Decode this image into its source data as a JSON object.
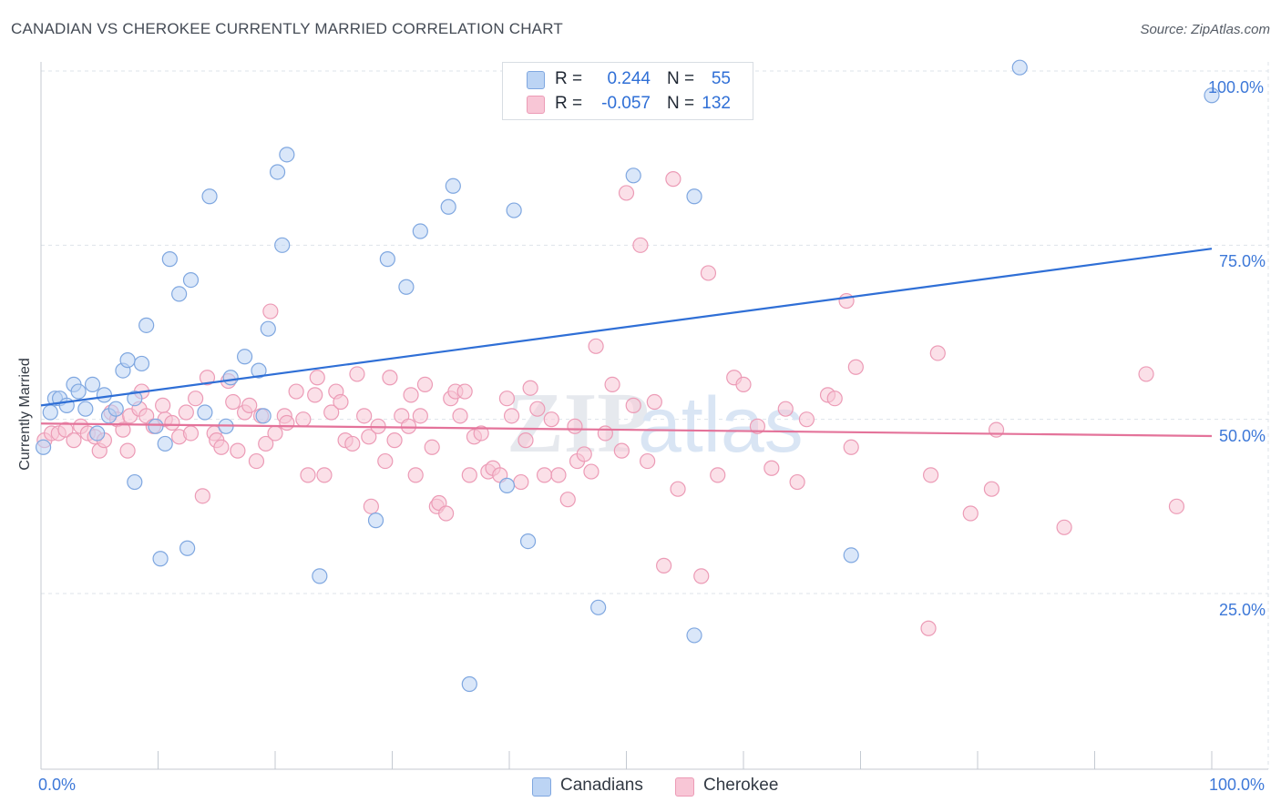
{
  "header": {
    "title": "CANADIAN VS CHEROKEE CURRENTLY MARRIED CORRELATION CHART",
    "source": "Source: ZipAtlas.com"
  },
  "legend": {
    "series": [
      {
        "r_label": "R =",
        "r_value": "0.244",
        "n_label": "N =",
        "n_value": "55"
      },
      {
        "r_label": "R =",
        "r_value": "-0.057",
        "n_label": "N =",
        "n_value": "132"
      }
    ]
  },
  "watermark": {
    "zip": "ZIP",
    "atlas": "atlas"
  },
  "colors": {
    "canadians_fill": "#bcd4f4",
    "canadians_stroke": "#7fa7e0",
    "canadians_line": "#2f6fd6",
    "cherokee_fill": "#f8c6d6",
    "cherokee_stroke": "#ec9bb6",
    "cherokee_line": "#e4739a",
    "grid": "#dde3ea",
    "axis_text": "#3d78d8"
  },
  "chart_data": {
    "type": "scatter",
    "title": "CANADIAN VS CHEROKEE CURRENTLY MARRIED CORRELATION CHART",
    "xlabel": "",
    "ylabel": "Currently Married",
    "xlim": [
      0,
      100
    ],
    "ylim": [
      0,
      103
    ],
    "x_tick_labels": [
      "0.0%",
      "100.0%"
    ],
    "y_ticks": [
      25,
      50,
      75,
      100
    ],
    "y_tick_labels": [
      "25.0%",
      "50.0%",
      "75.0%",
      "100.0%"
    ],
    "grid": true,
    "legend_position": "top-center",
    "series": [
      {
        "name": "Canadians",
        "r": 0.244,
        "n": 55,
        "trend": {
          "x": [
            0,
            100
          ],
          "y": [
            52.0,
            74.5
          ]
        },
        "points": [
          {
            "x": 0.2,
            "y": 46
          },
          {
            "x": 0.8,
            "y": 51
          },
          {
            "x": 1.2,
            "y": 53
          },
          {
            "x": 1.6,
            "y": 53
          },
          {
            "x": 2.2,
            "y": 52
          },
          {
            "x": 2.8,
            "y": 55
          },
          {
            "x": 3.2,
            "y": 54
          },
          {
            "x": 3.8,
            "y": 51.5
          },
          {
            "x": 4.4,
            "y": 55
          },
          {
            "x": 4.8,
            "y": 48
          },
          {
            "x": 5.4,
            "y": 53.5
          },
          {
            "x": 5.8,
            "y": 50.5
          },
          {
            "x": 6.4,
            "y": 51.5
          },
          {
            "x": 7.0,
            "y": 57
          },
          {
            "x": 7.4,
            "y": 58.5
          },
          {
            "x": 8.0,
            "y": 53
          },
          {
            "x": 8.6,
            "y": 58
          },
          {
            "x": 9.0,
            "y": 63.5
          },
          {
            "x": 9.8,
            "y": 49
          },
          {
            "x": 10.6,
            "y": 46.5
          },
          {
            "x": 11.0,
            "y": 73
          },
          {
            "x": 11.8,
            "y": 68
          },
          {
            "x": 12.8,
            "y": 70
          },
          {
            "x": 14.4,
            "y": 82
          },
          {
            "x": 16.2,
            "y": 56
          },
          {
            "x": 17.4,
            "y": 59
          },
          {
            "x": 18.6,
            "y": 57
          },
          {
            "x": 19.4,
            "y": 63
          },
          {
            "x": 20.2,
            "y": 85.5
          },
          {
            "x": 20.6,
            "y": 75
          },
          {
            "x": 21.0,
            "y": 88
          },
          {
            "x": 14.0,
            "y": 51
          },
          {
            "x": 8.0,
            "y": 41
          },
          {
            "x": 10.2,
            "y": 30
          },
          {
            "x": 12.5,
            "y": 31.5
          },
          {
            "x": 23.8,
            "y": 27.5
          },
          {
            "x": 19.0,
            "y": 50.5
          },
          {
            "x": 15.8,
            "y": 49
          },
          {
            "x": 28.6,
            "y": 35.5
          },
          {
            "x": 29.6,
            "y": 73
          },
          {
            "x": 31.2,
            "y": 69
          },
          {
            "x": 32.4,
            "y": 77
          },
          {
            "x": 34.8,
            "y": 80.5
          },
          {
            "x": 35.2,
            "y": 83.5
          },
          {
            "x": 36.6,
            "y": 12
          },
          {
            "x": 39.8,
            "y": 40.5
          },
          {
            "x": 40.4,
            "y": 80
          },
          {
            "x": 41.6,
            "y": 32.5
          },
          {
            "x": 47.6,
            "y": 23
          },
          {
            "x": 50.6,
            "y": 85
          },
          {
            "x": 55.8,
            "y": 82
          },
          {
            "x": 55.8,
            "y": 19
          },
          {
            "x": 69.2,
            "y": 30.5
          },
          {
            "x": 83.6,
            "y": 100.5
          },
          {
            "x": 100.0,
            "y": 96.5
          }
        ]
      },
      {
        "name": "Cherokee",
        "r": -0.057,
        "n": 132,
        "trend": {
          "x": [
            0,
            100
          ],
          "y": [
            49.4,
            47.6
          ]
        },
        "points": [
          {
            "x": 0.3,
            "y": 47
          },
          {
            "x": 0.9,
            "y": 48
          },
          {
            "x": 1.5,
            "y": 48
          },
          {
            "x": 2.1,
            "y": 48.5
          },
          {
            "x": 2.8,
            "y": 47
          },
          {
            "x": 3.4,
            "y": 49
          },
          {
            "x": 4.0,
            "y": 48
          },
          {
            "x": 4.6,
            "y": 47.5
          },
          {
            "x": 5.0,
            "y": 45.5
          },
          {
            "x": 5.4,
            "y": 47
          },
          {
            "x": 6.0,
            "y": 51
          },
          {
            "x": 6.5,
            "y": 50
          },
          {
            "x": 7.0,
            "y": 48.5
          },
          {
            "x": 7.6,
            "y": 50.5
          },
          {
            "x": 7.4,
            "y": 45.5
          },
          {
            "x": 8.4,
            "y": 51.5
          },
          {
            "x": 8.6,
            "y": 54
          },
          {
            "x": 9.0,
            "y": 50.5
          },
          {
            "x": 9.6,
            "y": 49
          },
          {
            "x": 10.4,
            "y": 52
          },
          {
            "x": 10.6,
            "y": 50
          },
          {
            "x": 11.2,
            "y": 49.5
          },
          {
            "x": 11.8,
            "y": 47.5
          },
          {
            "x": 12.4,
            "y": 51
          },
          {
            "x": 12.8,
            "y": 48
          },
          {
            "x": 13.2,
            "y": 53
          },
          {
            "x": 13.8,
            "y": 39
          },
          {
            "x": 14.2,
            "y": 56
          },
          {
            "x": 14.8,
            "y": 48
          },
          {
            "x": 15.0,
            "y": 47
          },
          {
            "x": 15.4,
            "y": 46
          },
          {
            "x": 16.0,
            "y": 55.5
          },
          {
            "x": 16.4,
            "y": 52.5
          },
          {
            "x": 16.8,
            "y": 45.5
          },
          {
            "x": 17.4,
            "y": 51
          },
          {
            "x": 17.8,
            "y": 52
          },
          {
            "x": 18.4,
            "y": 44
          },
          {
            "x": 18.8,
            "y": 50.5
          },
          {
            "x": 19.2,
            "y": 46.5
          },
          {
            "x": 19.6,
            "y": 65.5
          },
          {
            "x": 20.0,
            "y": 48
          },
          {
            "x": 20.8,
            "y": 50.5
          },
          {
            "x": 21.0,
            "y": 49.5
          },
          {
            "x": 21.8,
            "y": 54
          },
          {
            "x": 22.4,
            "y": 50
          },
          {
            "x": 22.8,
            "y": 42
          },
          {
            "x": 23.4,
            "y": 53.5
          },
          {
            "x": 23.6,
            "y": 56
          },
          {
            "x": 24.2,
            "y": 42
          },
          {
            "x": 24.8,
            "y": 51
          },
          {
            "x": 25.2,
            "y": 54
          },
          {
            "x": 25.6,
            "y": 52.5
          },
          {
            "x": 26.0,
            "y": 47
          },
          {
            "x": 26.6,
            "y": 46.5
          },
          {
            "x": 27.0,
            "y": 56.5
          },
          {
            "x": 27.6,
            "y": 50.5
          },
          {
            "x": 28.0,
            "y": 47.5
          },
          {
            "x": 28.2,
            "y": 37.5
          },
          {
            "x": 28.8,
            "y": 49
          },
          {
            "x": 29.4,
            "y": 44
          },
          {
            "x": 29.8,
            "y": 56
          },
          {
            "x": 30.2,
            "y": 47
          },
          {
            "x": 30.8,
            "y": 50.5
          },
          {
            "x": 31.4,
            "y": 49
          },
          {
            "x": 31.6,
            "y": 53.5
          },
          {
            "x": 32.0,
            "y": 42
          },
          {
            "x": 32.4,
            "y": 50.5
          },
          {
            "x": 32.8,
            "y": 55
          },
          {
            "x": 33.4,
            "y": 46
          },
          {
            "x": 33.8,
            "y": 37.5
          },
          {
            "x": 34.0,
            "y": 38
          },
          {
            "x": 34.6,
            "y": 36.5
          },
          {
            "x": 35.0,
            "y": 53
          },
          {
            "x": 35.4,
            "y": 54
          },
          {
            "x": 35.8,
            "y": 50.5
          },
          {
            "x": 36.2,
            "y": 54
          },
          {
            "x": 36.6,
            "y": 42
          },
          {
            "x": 37.0,
            "y": 47.5
          },
          {
            "x": 37.6,
            "y": 48
          },
          {
            "x": 38.2,
            "y": 42.5
          },
          {
            "x": 38.6,
            "y": 43
          },
          {
            "x": 39.2,
            "y": 42
          },
          {
            "x": 39.8,
            "y": 53
          },
          {
            "x": 40.2,
            "y": 50.5
          },
          {
            "x": 41.0,
            "y": 41
          },
          {
            "x": 41.4,
            "y": 47
          },
          {
            "x": 41.8,
            "y": 54.5
          },
          {
            "x": 42.4,
            "y": 51.5
          },
          {
            "x": 43.0,
            "y": 42
          },
          {
            "x": 43.6,
            "y": 50
          },
          {
            "x": 44.2,
            "y": 42
          },
          {
            "x": 45.0,
            "y": 38.5
          },
          {
            "x": 45.6,
            "y": 49
          },
          {
            "x": 45.8,
            "y": 44
          },
          {
            "x": 46.4,
            "y": 45
          },
          {
            "x": 47.0,
            "y": 42.5
          },
          {
            "x": 47.4,
            "y": 60.5
          },
          {
            "x": 48.2,
            "y": 48
          },
          {
            "x": 48.8,
            "y": 55
          },
          {
            "x": 49.6,
            "y": 45.5
          },
          {
            "x": 50.0,
            "y": 82.5
          },
          {
            "x": 50.6,
            "y": 52
          },
          {
            "x": 51.2,
            "y": 75
          },
          {
            "x": 51.8,
            "y": 44
          },
          {
            "x": 52.4,
            "y": 52.5
          },
          {
            "x": 53.2,
            "y": 29
          },
          {
            "x": 54.0,
            "y": 84.5
          },
          {
            "x": 54.4,
            "y": 40
          },
          {
            "x": 56.4,
            "y": 27.5
          },
          {
            "x": 57.0,
            "y": 71
          },
          {
            "x": 57.8,
            "y": 42
          },
          {
            "x": 59.2,
            "y": 56
          },
          {
            "x": 60.0,
            "y": 55
          },
          {
            "x": 61.2,
            "y": 49
          },
          {
            "x": 62.4,
            "y": 43
          },
          {
            "x": 63.6,
            "y": 51.5
          },
          {
            "x": 64.6,
            "y": 41
          },
          {
            "x": 65.4,
            "y": 50
          },
          {
            "x": 67.2,
            "y": 53.5
          },
          {
            "x": 67.8,
            "y": 53
          },
          {
            "x": 68.8,
            "y": 67
          },
          {
            "x": 69.2,
            "y": 46
          },
          {
            "x": 69.6,
            "y": 57.5
          },
          {
            "x": 75.8,
            "y": 20
          },
          {
            "x": 76.0,
            "y": 42
          },
          {
            "x": 76.6,
            "y": 59.5
          },
          {
            "x": 79.4,
            "y": 36.5
          },
          {
            "x": 81.2,
            "y": 40
          },
          {
            "x": 81.6,
            "y": 48.5
          },
          {
            "x": 87.4,
            "y": 34.5
          },
          {
            "x": 94.4,
            "y": 56.5
          },
          {
            "x": 97.0,
            "y": 37.5
          }
        ]
      }
    ]
  }
}
